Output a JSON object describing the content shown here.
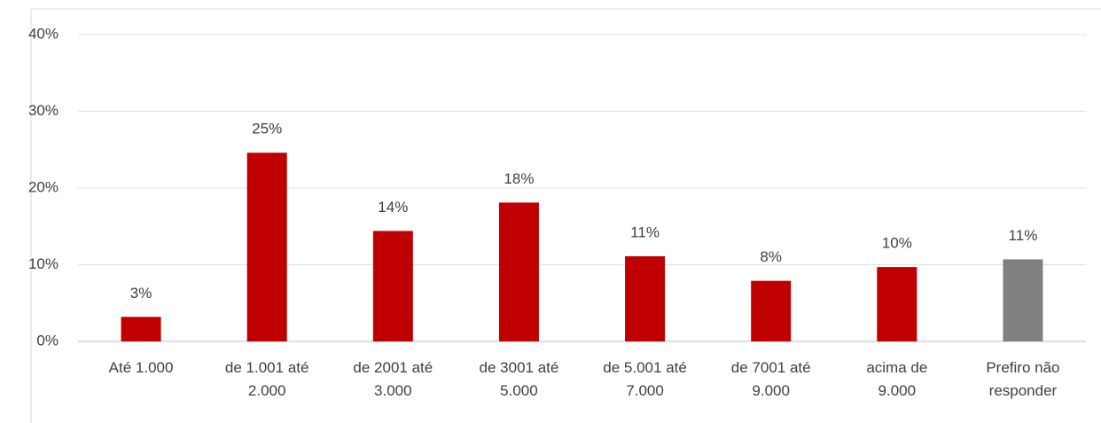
{
  "chart_data": {
    "type": "bar",
    "categories": [
      "Até 1.000",
      "de 1.001 até\n2.000",
      "de 2001 até\n3.000",
      "de 3001 até\n5.000",
      "de 5.001 até\n7.000",
      "de 7001 até\n9.000",
      "acima de\n9.000",
      "Prefiro não\nresponder"
    ],
    "values": [
      3.2,
      24.6,
      14.4,
      18.1,
      11.1,
      7.9,
      9.7,
      10.7
    ],
    "value_labels": [
      "3%",
      "25%",
      "14%",
      "18%",
      "11%",
      "8%",
      "10%",
      "11%"
    ],
    "colors": [
      "#c00000",
      "#c00000",
      "#c00000",
      "#c00000",
      "#c00000",
      "#c00000",
      "#c00000",
      "#808080"
    ],
    "ylim": [
      0,
      40
    ],
    "yticks": [
      {
        "value": 0,
        "label": "0%"
      },
      {
        "value": 10,
        "label": "10%"
      },
      {
        "value": 20,
        "label": "20%"
      },
      {
        "value": 30,
        "label": "30%"
      },
      {
        "value": 40,
        "label": "40%"
      }
    ],
    "grid": true
  }
}
